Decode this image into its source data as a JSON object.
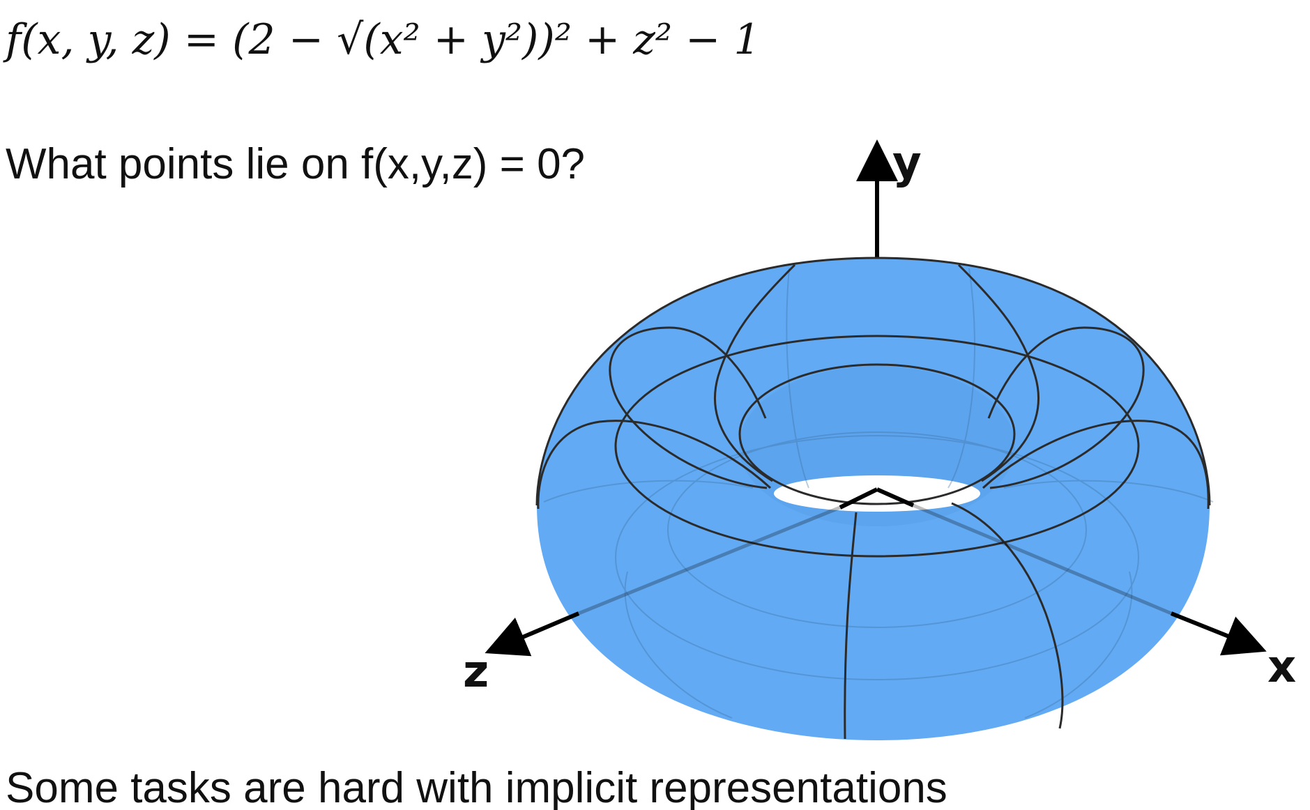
{
  "formula": "f(x, y, z) = (2 − √(x² + y²))² + z² − 1",
  "question": "What points lie on f(x,y,z) = 0?",
  "footer": "Some tasks are hard with implicit representations",
  "axes": {
    "x_label": "x",
    "y_label": "y",
    "z_label": "z"
  },
  "colors": {
    "torus_fill": "#62aaf3",
    "wireframe": "#2b2b2b",
    "axis": "#000000"
  }
}
